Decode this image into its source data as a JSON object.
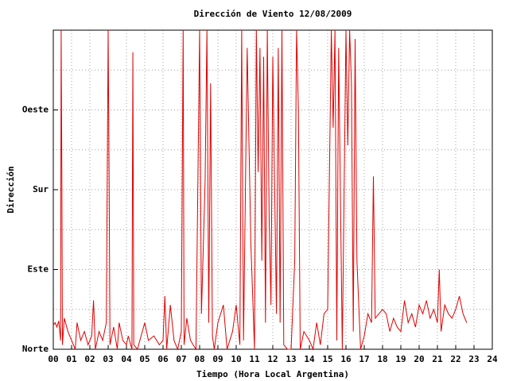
{
  "chart_data": {
    "type": "line",
    "title": "Dirección de Viento 12/08/2009",
    "x_label": "Tiempo (Hora Local Argentina)",
    "y_label": "Dirección",
    "xlim": [
      0,
      24
    ],
    "xticks": [
      {
        "value": 0,
        "label": "00"
      },
      {
        "value": 1,
        "label": "01"
      },
      {
        "value": 2,
        "label": "02"
      },
      {
        "value": 3,
        "label": "03"
      },
      {
        "value": 4,
        "label": "04"
      },
      {
        "value": 5,
        "label": "05"
      },
      {
        "value": 6,
        "label": "06"
      },
      {
        "value": 7,
        "label": "07"
      },
      {
        "value": 8,
        "label": "08"
      },
      {
        "value": 9,
        "label": "09"
      },
      10,
      11,
      12,
      13,
      14,
      15,
      16,
      17,
      18,
      19,
      20,
      21,
      22,
      23,
      24
    ],
    "ylim": [
      0,
      360
    ],
    "yticks": [
      {
        "value": 0,
        "label": "Norte"
      },
      {
        "value": 90,
        "label": "Este"
      },
      {
        "value": 180,
        "label": "Sur"
      },
      {
        "value": 270,
        "label": "Oeste"
      }
    ],
    "grid": true,
    "color": "#e00000",
    "x": [
      0.0,
      0.1,
      0.2,
      0.3,
      0.4,
      0.43,
      0.47,
      0.5,
      0.6,
      0.8,
      1.0,
      1.2,
      1.3,
      1.5,
      1.7,
      1.9,
      2.1,
      2.2,
      2.3,
      2.5,
      2.7,
      2.9,
      3.0,
      3.05,
      3.1,
      3.3,
      3.5,
      3.6,
      3.8,
      4.0,
      4.1,
      4.3,
      4.35,
      4.4,
      4.6,
      5.0,
      5.2,
      5.5,
      5.8,
      6.0,
      6.1,
      6.2,
      6.4,
      6.6,
      6.8,
      7.0,
      7.1,
      7.15,
      7.3,
      7.5,
      7.8,
      8.0,
      8.1,
      8.3,
      8.4,
      8.5,
      8.6,
      8.7,
      8.8,
      9.0,
      9.3,
      9.5,
      9.8,
      10.0,
      10.2,
      10.3,
      10.4,
      10.6,
      10.8,
      11.0,
      11.1,
      11.2,
      11.3,
      11.4,
      11.5,
      11.6,
      11.7,
      11.8,
      11.9,
      12.0,
      12.2,
      12.3,
      12.4,
      12.5,
      12.6,
      12.8,
      13.0,
      13.2,
      13.3,
      13.4,
      13.5,
      13.7,
      14.0,
      14.2,
      14.4,
      14.6,
      14.8,
      15.0,
      15.2,
      15.3,
      15.4,
      15.5,
      15.6,
      15.8,
      16.0,
      16.1,
      16.2,
      16.3,
      16.4,
      16.5,
      16.6,
      16.8,
      17.0,
      17.2,
      17.4,
      17.5,
      17.6,
      18.0,
      18.2,
      18.4,
      18.6,
      18.8,
      19.0,
      19.2,
      19.4,
      19.6,
      19.8,
      20.0,
      20.2,
      20.4,
      20.6,
      20.8,
      21.0,
      21.1,
      21.2,
      21.4,
      21.6,
      21.8,
      22.0,
      22.2,
      22.4,
      22.6
    ],
    "values": [
      27,
      30,
      25,
      32,
      10,
      360,
      190,
      5,
      35,
      20,
      10,
      0,
      30,
      10,
      20,
      5,
      15,
      55,
      0,
      20,
      10,
      30,
      360,
      200,
      5,
      25,
      0,
      30,
      10,
      5,
      15,
      0,
      335,
      5,
      0,
      30,
      10,
      15,
      5,
      10,
      60,
      0,
      50,
      10,
      0,
      20,
      360,
      5,
      35,
      10,
      0,
      360,
      40,
      190,
      360,
      30,
      300,
      15,
      0,
      30,
      50,
      0,
      20,
      50,
      5,
      360,
      10,
      340,
      120,
      0,
      360,
      200,
      340,
      100,
      330,
      30,
      360,
      150,
      50,
      330,
      40,
      340,
      30,
      360,
      5,
      0,
      0,
      100,
      360,
      270,
      0,
      20,
      10,
      0,
      30,
      5,
      40,
      45,
      360,
      250,
      360,
      10,
      340,
      0,
      360,
      230,
      360,
      300,
      20,
      350,
      100,
      0,
      15,
      40,
      30,
      195,
      35,
      45,
      40,
      20,
      35,
      25,
      20,
      55,
      30,
      40,
      25,
      50,
      40,
      55,
      35,
      45,
      30,
      90,
      20,
      50,
      40,
      35,
      45,
      60,
      40,
      30
    ]
  }
}
